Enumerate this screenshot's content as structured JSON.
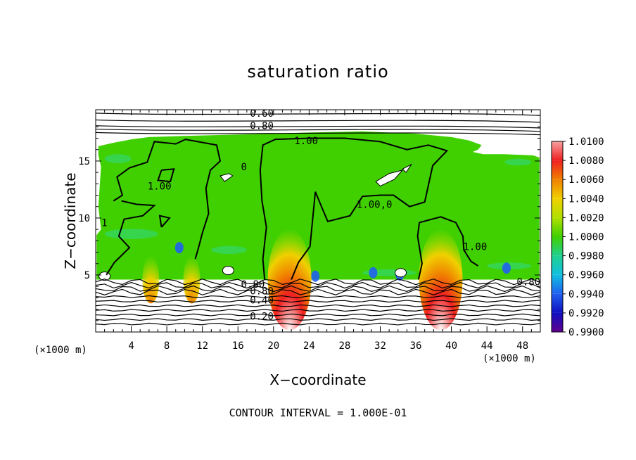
{
  "chart_data": {
    "type": "heatmap",
    "title": "saturation ratio",
    "xlabel": "X−coordinate",
    "ylabel": "Z−coordinate",
    "x_unit_left": "(×1000 m)",
    "x_unit_right": "(×1000 m)",
    "xlim": [
      0,
      50
    ],
    "ylim": [
      0,
      19.5
    ],
    "x_ticks": [
      "4",
      "8",
      "12",
      "16",
      "20",
      "24",
      "28",
      "32",
      "36",
      "40",
      "44",
      "48"
    ],
    "x_tick_values": [
      4,
      8,
      12,
      16,
      20,
      24,
      28,
      32,
      36,
      40,
      44,
      48
    ],
    "y_ticks": [
      "5",
      "10",
      "15"
    ],
    "y_tick_values": [
      5,
      10,
      15
    ],
    "colorbar": {
      "min": 0.99,
      "max": 1.01,
      "labels": [
        "1.0100",
        "1.0080",
        "1.0060",
        "1.0040",
        "1.0020",
        "1.0000",
        "0.9980",
        "0.9960",
        "0.9940",
        "0.9920",
        "0.9900"
      ],
      "colors": [
        "#f7a0a0",
        "#f02020",
        "#f08000",
        "#f0d000",
        "#b0e000",
        "#40d000",
        "#20d090",
        "#10c0e0",
        "#2060f0",
        "#1010c0",
        "#600090"
      ]
    },
    "contour_levels": [
      0.2,
      0.4,
      0.6,
      0.8,
      1.0
    ],
    "contour_labels": [
      {
        "text": "0.60",
        "x": 17.5,
        "y": 19.2
      },
      {
        "text": "0.80",
        "x": 17.5,
        "y": 18.1
      },
      {
        "text": "1.00",
        "x": 22.5,
        "y": 16.8
      },
      {
        "text": "0",
        "x": 16.5,
        "y": 14.5
      },
      {
        "text": "1.00",
        "x": 6,
        "y": 12.8
      },
      {
        "text": "1.00,0",
        "x": 29.5,
        "y": 11.2
      },
      {
        "text": "1",
        "x": 0.8,
        "y": 9.6
      },
      {
        "text": "1.00",
        "x": 41.5,
        "y": 7.5
      },
      {
        "text": "0.80",
        "x": 16.5,
        "y": 4.2
      },
      {
        "text": "0.80",
        "x": 17.5,
        "y": 3.6
      },
      {
        "text": "0.40",
        "x": 17.5,
        "y": 2.8
      },
      {
        "text": "0.20",
        "x": 17.5,
        "y": 1.4
      },
      {
        "text": "0.80",
        "x": 47.5,
        "y": 4.4
      }
    ],
    "hotspots": [
      {
        "x": 21.8,
        "level": "1.0100"
      },
      {
        "x": 38.8,
        "level": "1.0100"
      },
      {
        "x": 6.2,
        "level": "1.0060"
      },
      {
        "x": 10.8,
        "level": "1.0040"
      }
    ],
    "footer": "CONTOUR INTERVAL = 1.000E-01"
  }
}
